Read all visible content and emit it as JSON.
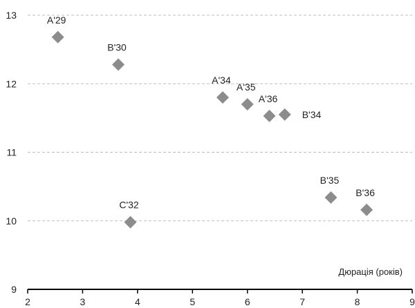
{
  "chart_data": {
    "type": "scatter",
    "xlabel": "Дюрація (років)",
    "ylabel": "",
    "xlim": [
      2,
      9
    ],
    "ylim": [
      9,
      13
    ],
    "x_ticks": [
      2,
      3,
      4,
      5,
      6,
      7,
      8,
      9
    ],
    "y_ticks": [
      9,
      10,
      11,
      12,
      13
    ],
    "grid": "horizontal dashed",
    "marker": "diamond",
    "colors": {
      "marker": "#8c8c8c",
      "grid": "#bdbdbd",
      "axis": "#000000",
      "text": "#222222"
    },
    "points": [
      {
        "label": "A'29",
        "x": 2.55,
        "y": 12.68,
        "label_pos": "above"
      },
      {
        "label": "B'30",
        "x": 3.65,
        "y": 12.28,
        "label_pos": "above"
      },
      {
        "label": "A'34",
        "x": 5.55,
        "y": 11.8,
        "label_pos": "above"
      },
      {
        "label": "A'35",
        "x": 6.0,
        "y": 11.7,
        "label_pos": "above"
      },
      {
        "label": "A'36",
        "x": 6.4,
        "y": 11.53,
        "label_pos": "above"
      },
      {
        "label": "B'34",
        "x": 6.68,
        "y": 11.55,
        "label_pos": "right"
      },
      {
        "label": "C'32",
        "x": 3.87,
        "y": 9.98,
        "label_pos": "above"
      },
      {
        "label": "B'35",
        "x": 7.52,
        "y": 10.34,
        "label_pos": "above"
      },
      {
        "label": "B'36",
        "x": 8.17,
        "y": 10.16,
        "label_pos": "above"
      }
    ]
  }
}
